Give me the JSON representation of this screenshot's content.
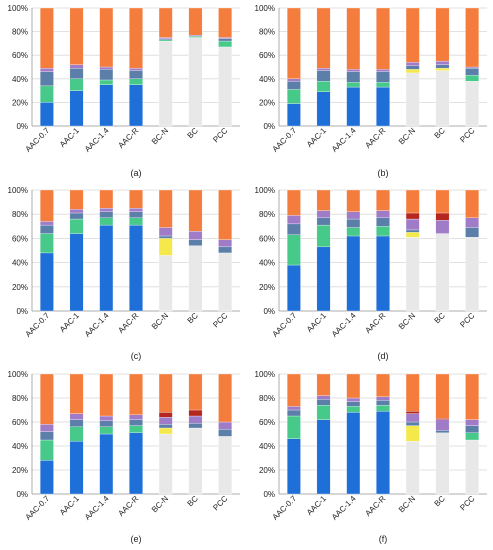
{
  "chart_data": [
    {
      "type": "bar",
      "stacked": true,
      "panel_label": "(a)",
      "categories": [
        "AAC-0.7",
        "AAC-1",
        "AAC-1.4",
        "AAC-R",
        "BC-N",
        "BC",
        "PCC"
      ],
      "ylim": [
        0,
        100
      ],
      "yticks": [
        "0%",
        "20%",
        "40%",
        "60%",
        "80%",
        "100%"
      ],
      "series": [
        {
          "color": "#e8e8e8",
          "values": [
            0,
            0,
            0,
            0,
            72,
            75,
            67
          ]
        },
        {
          "color": "#1f6fd8",
          "values": [
            20,
            30,
            35,
            35,
            0,
            0,
            0
          ]
        },
        {
          "color": "#47c98a",
          "values": [
            14,
            10,
            4,
            5,
            1,
            1,
            5
          ]
        },
        {
          "color": "#5b7fa8",
          "values": [
            12,
            9,
            9,
            7,
            1,
            0,
            2
          ]
        },
        {
          "color": "#a07cc8",
          "values": [
            3,
            3,
            2,
            2,
            1,
            1,
            1
          ]
        },
        {
          "color": "#f47c3c",
          "values": [
            51,
            48,
            50,
            51,
            25,
            23,
            25
          ]
        }
      ]
    },
    {
      "type": "bar",
      "stacked": true,
      "panel_label": "(b)",
      "categories": [
        "AAC-0.7",
        "AAC-1",
        "AAC-1.4",
        "AAC-R",
        "BC-N",
        "BC",
        "PCC"
      ],
      "ylim": [
        0,
        100
      ],
      "yticks": [
        "0%",
        "20%",
        "40%",
        "60%",
        "80%",
        "100%"
      ],
      "series": [
        {
          "color": "#e8e8e8",
          "values": [
            0,
            0,
            0,
            0,
            45,
            47,
            38
          ]
        },
        {
          "color": "#1f6fd8",
          "values": [
            19,
            29,
            33,
            33,
            0,
            0,
            0
          ]
        },
        {
          "color": "#47c98a",
          "values": [
            12,
            9,
            4,
            4,
            0,
            0,
            5
          ]
        },
        {
          "color": "#f5e84a",
          "values": [
            0,
            0,
            0,
            0,
            3,
            2,
            0
          ]
        },
        {
          "color": "#5b7fa8",
          "values": [
            7,
            9,
            9,
            9,
            3,
            3,
            6
          ]
        },
        {
          "color": "#a07cc8",
          "values": [
            2,
            2,
            2,
            2,
            3,
            3,
            1
          ]
        },
        {
          "color": "#f47c3c",
          "values": [
            60,
            51,
            52,
            52,
            46,
            45,
            50
          ]
        }
      ]
    },
    {
      "type": "bar",
      "stacked": true,
      "panel_label": "(c)",
      "categories": [
        "AAC-0.7",
        "AAC-1",
        "AAC-1.4",
        "AAC-R",
        "BC-N",
        "BC",
        "PCC"
      ],
      "ylim": [
        0,
        100
      ],
      "yticks": [
        "0%",
        "20%",
        "40%",
        "60%",
        "80%",
        "100%"
      ],
      "series": [
        {
          "color": "#e8e8e8",
          "values": [
            0,
            0,
            0,
            0,
            46,
            54,
            48
          ]
        },
        {
          "color": "#1f6fd8",
          "values": [
            48,
            64,
            71,
            71,
            0,
            0,
            0
          ]
        },
        {
          "color": "#47c98a",
          "values": [
            16,
            12,
            6,
            6,
            0,
            0,
            0
          ]
        },
        {
          "color": "#f5e84a",
          "values": [
            0,
            0,
            0,
            0,
            14,
            0,
            0
          ]
        },
        {
          "color": "#5b7fa8",
          "values": [
            7,
            5,
            5,
            5,
            2,
            5,
            5
          ]
        },
        {
          "color": "#a07cc8",
          "values": [
            3,
            3,
            3,
            3,
            7,
            7,
            6
          ]
        },
        {
          "color": "#f47c3c",
          "values": [
            26,
            16,
            15,
            15,
            31,
            34,
            41
          ]
        }
      ]
    },
    {
      "type": "bar",
      "stacked": true,
      "panel_label": "(d)",
      "categories": [
        "AAC-0.7",
        "AAC-1",
        "AAC-1.4",
        "AAC-R",
        "BC-N",
        "BC",
        "PCC"
      ],
      "ylim": [
        0,
        100
      ],
      "yticks": [
        "0%",
        "20%",
        "40%",
        "60%",
        "80%",
        "100%"
      ],
      "series": [
        {
          "color": "#e8e8e8",
          "values": [
            0,
            0,
            0,
            0,
            61,
            64,
            61
          ]
        },
        {
          "color": "#1f6fd8",
          "values": [
            38,
            53,
            62,
            62,
            0,
            0,
            0
          ]
        },
        {
          "color": "#47c98a",
          "values": [
            25,
            18,
            7,
            8,
            0,
            0,
            0
          ]
        },
        {
          "color": "#f5e84a",
          "values": [
            0,
            0,
            0,
            0,
            4,
            0,
            0
          ]
        },
        {
          "color": "#5b7fa8",
          "values": [
            9,
            6,
            7,
            7,
            2,
            0,
            8
          ]
        },
        {
          "color": "#a07cc8",
          "values": [
            7,
            6,
            6,
            6,
            9,
            11,
            8
          ]
        },
        {
          "color": "#b5271e",
          "values": [
            0,
            0,
            0,
            0,
            5,
            6,
            0
          ]
        },
        {
          "color": "#f47c3c",
          "values": [
            21,
            17,
            18,
            17,
            19,
            19,
            23
          ]
        }
      ]
    },
    {
      "type": "bar",
      "stacked": true,
      "panel_label": "(e)",
      "categories": [
        "AAC-0.7",
        "AAC-1",
        "AAC-1.4",
        "AAC-R",
        "BC-N",
        "BC",
        "PCC"
      ],
      "ylim": [
        0,
        100
      ],
      "yticks": [
        "0%",
        "20%",
        "40%",
        "60%",
        "80%",
        "100%"
      ],
      "series": [
        {
          "color": "#e8e8e8",
          "values": [
            0,
            0,
            0,
            0,
            50,
            55,
            48
          ]
        },
        {
          "color": "#1f6fd8",
          "values": [
            28,
            44,
            50,
            51,
            0,
            0,
            0
          ]
        },
        {
          "color": "#47c98a",
          "values": [
            17,
            12,
            6,
            6,
            0,
            0,
            0
          ]
        },
        {
          "color": "#f5e84a",
          "values": [
            0,
            0,
            0,
            0,
            5,
            0,
            0
          ]
        },
        {
          "color": "#5b7fa8",
          "values": [
            7,
            6,
            5,
            5,
            3,
            4,
            6
          ]
        },
        {
          "color": "#a07cc8",
          "values": [
            6,
            5,
            4,
            4,
            6,
            6,
            6
          ]
        },
        {
          "color": "#b5271e",
          "values": [
            0,
            0,
            0,
            0,
            4,
            5,
            0
          ]
        },
        {
          "color": "#f47c3c",
          "values": [
            42,
            33,
            35,
            34,
            32,
            30,
            40
          ]
        }
      ]
    },
    {
      "type": "bar",
      "stacked": true,
      "panel_label": "(f)",
      "categories": [
        "AAC-0.7",
        "AAC-1",
        "AAC-1.4",
        "AAC-R",
        "BC-N",
        "BC",
        "PCC"
      ],
      "ylim": [
        0,
        100
      ],
      "yticks": [
        "0%",
        "20%",
        "40%",
        "60%",
        "80%",
        "100%"
      ],
      "series": [
        {
          "color": "#e8e8e8",
          "values": [
            0,
            0,
            0,
            0,
            44,
            51,
            45
          ]
        },
        {
          "color": "#1f6fd8",
          "values": [
            46,
            62,
            68,
            69,
            0,
            0,
            0
          ]
        },
        {
          "color": "#47c98a",
          "values": [
            19,
            12,
            5,
            5,
            0,
            0,
            6
          ]
        },
        {
          "color": "#f5e84a",
          "values": [
            0,
            0,
            0,
            0,
            13,
            0,
            0
          ]
        },
        {
          "color": "#5b7fa8",
          "values": [
            5,
            5,
            4,
            4,
            3,
            2,
            6
          ]
        },
        {
          "color": "#a07cc8",
          "values": [
            3,
            3,
            3,
            3,
            7,
            9,
            5
          ]
        },
        {
          "color": "#b5271e",
          "values": [
            0,
            0,
            0,
            0,
            2,
            1,
            0
          ]
        },
        {
          "color": "#f47c3c",
          "values": [
            27,
            18,
            20,
            19,
            31,
            37,
            38
          ]
        }
      ]
    }
  ]
}
